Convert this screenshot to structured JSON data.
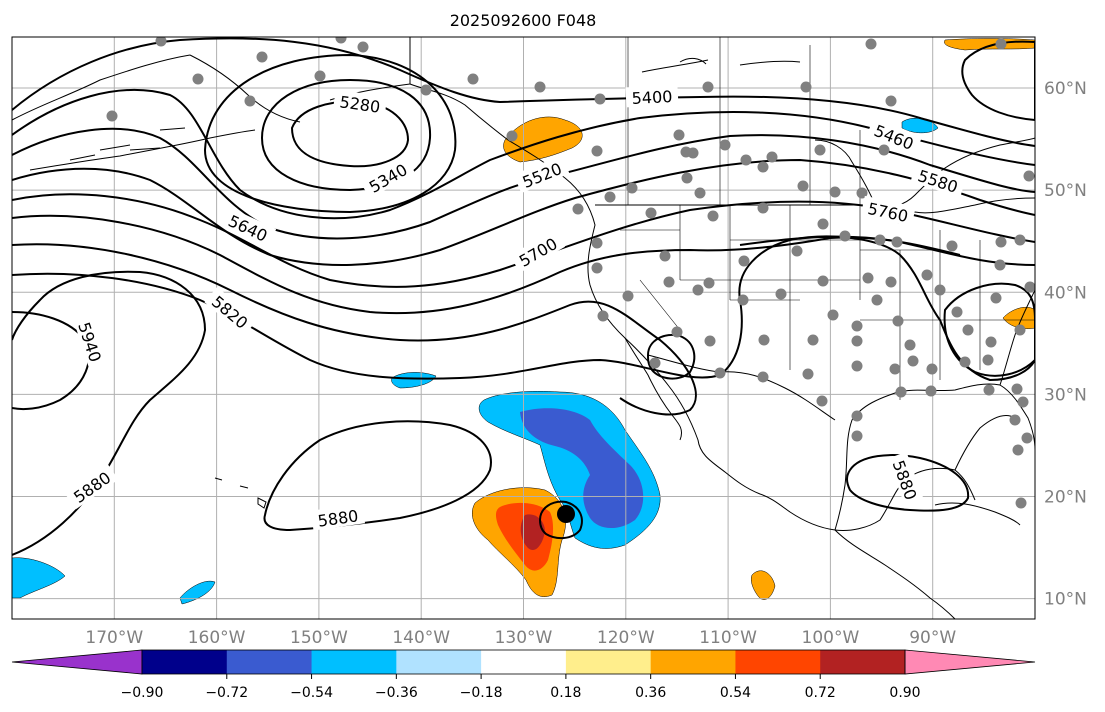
{
  "title": "2025092600 F048",
  "map": {
    "lon_range": [
      -180,
      -80
    ],
    "lat_range": [
      8,
      65
    ],
    "grid": true,
    "lon_labels": [
      "170°W",
      "160°W",
      "150°W",
      "140°W",
      "130°W",
      "120°W",
      "110°W",
      "100°W",
      "90°W"
    ],
    "lat_labels": [
      "60°N",
      "50°N",
      "40°N",
      "30°N",
      "20°N",
      "10°N"
    ],
    "contour_labels": [
      {
        "text": "5280",
        "angle": 8
      },
      {
        "text": "5340",
        "angle": -30
      },
      {
        "text": "5400",
        "angle": -3
      },
      {
        "text": "5460",
        "angle": 22
      },
      {
        "text": "5520",
        "angle": -22
      },
      {
        "text": "5580",
        "angle": 18
      },
      {
        "text": "5640",
        "angle": 25
      },
      {
        "text": "5700",
        "angle": -30
      },
      {
        "text": "5760",
        "angle": 12
      },
      {
        "text": "5820",
        "angle": 40
      },
      {
        "text": "5880",
        "angle": -35
      },
      {
        "text": "5880",
        "angle": -8
      },
      {
        "text": "5880",
        "angle": 70
      },
      {
        "text": "5940",
        "angle": 72
      }
    ],
    "storm_marker": "hurricane-center",
    "station_marker_color": "#808080"
  },
  "colorbar": {
    "colors": [
      "#9932cc",
      "#00008b",
      "#3a5bd0",
      "#00bfff",
      "#b0e2ff",
      "#ffffff",
      "#ffee8c",
      "#ffa500",
      "#ff4500",
      "#b22222",
      "#ff89b4"
    ],
    "labels": [
      "−0.90",
      "−0.72",
      "−0.54",
      "−0.36",
      "−0.18",
      "0.18",
      "0.36",
      "0.54",
      "0.72",
      "0.90"
    ]
  },
  "colors": {
    "neg_strong": "#3a5bd0",
    "neg_med": "#00bfff",
    "pos_med": "#ffa500",
    "pos_strong": "#ff4500",
    "pos_vstrong": "#b22222"
  }
}
